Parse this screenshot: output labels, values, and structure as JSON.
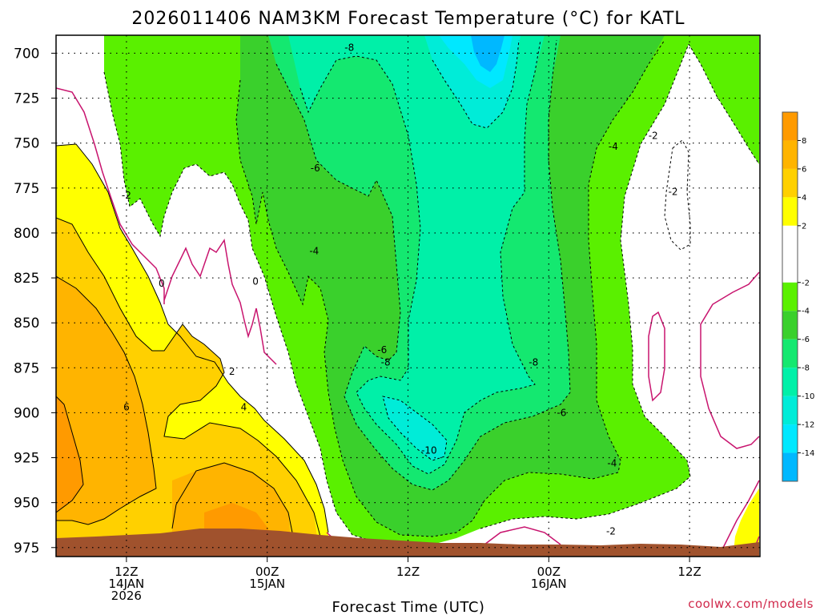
{
  "chart_data": {
    "type": "heatmap",
    "title": "2026011406 NAM3KM Forecast Temperature (°C) for KATL",
    "xlabel": "Forecast Time (UTC)",
    "ylabel": "",
    "credit": "coolwx.com/models",
    "x_ticks": [
      {
        "hours": 6,
        "lines": [
          "12Z",
          "14JAN",
          "2026"
        ]
      },
      {
        "hours": 18,
        "lines": [
          "00Z",
          "15JAN"
        ]
      },
      {
        "hours": 30,
        "lines": [
          "12Z"
        ]
      },
      {
        "hours": 42,
        "lines": [
          "00Z",
          "16JAN"
        ]
      },
      {
        "hours": 54,
        "lines": [
          "12Z"
        ]
      }
    ],
    "xlim_hours": [
      0,
      60
    ],
    "y_axis": {
      "scale": "linear-inverted",
      "ticks": [
        700,
        725,
        750,
        775,
        800,
        825,
        850,
        875,
        900,
        925,
        950,
        975
      ],
      "ylim": [
        980,
        690
      ]
    },
    "grid": true,
    "legend": "colorbar-right",
    "colorbar": {
      "labels": [
        "8",
        "6",
        "4",
        "2",
        "-2",
        "-4",
        "-6",
        "-8",
        "-10",
        "-12",
        "-14"
      ],
      "bands": [
        {
          "from": 8,
          "to": 10,
          "color": "#ff9a00"
        },
        {
          "from": 6,
          "to": 8,
          "color": "#ffb400"
        },
        {
          "from": 4,
          "to": 6,
          "color": "#ffd000"
        },
        {
          "from": 2,
          "to": 4,
          "color": "#ffff00"
        },
        {
          "from": -2,
          "to": 2,
          "color": "#ffffff"
        },
        {
          "from": -4,
          "to": -2,
          "color": "#5af000"
        },
        {
          "from": -6,
          "to": -4,
          "color": "#3ad02c"
        },
        {
          "from": -8,
          "to": -6,
          "color": "#14e870"
        },
        {
          "from": -10,
          "to": -8,
          "color": "#00f0a8"
        },
        {
          "from": -12,
          "to": -10,
          "color": "#00ecd8"
        },
        {
          "from": -14,
          "to": -12,
          "color": "#00e8ff"
        },
        {
          "from": -16,
          "to": -14,
          "color": "#00b8ff"
        }
      ]
    },
    "contour_labels": [
      {
        "text": "-8",
        "hours": 25.0,
        "p": 697
      },
      {
        "text": "-6",
        "hours": 22.1,
        "p": 764
      },
      {
        "text": "-2",
        "hours": 6.0,
        "p": 779
      },
      {
        "text": "-4",
        "hours": 22.0,
        "p": 810
      },
      {
        "text": "0",
        "hours": 9.0,
        "p": 828
      },
      {
        "text": "0",
        "hours": 17.0,
        "p": 827
      },
      {
        "text": "-6",
        "hours": 27.8,
        "p": 865
      },
      {
        "text": "-8",
        "hours": 28.1,
        "p": 872
      },
      {
        "text": "2",
        "hours": 15.0,
        "p": 877
      },
      {
        "text": "-8",
        "hours": 40.7,
        "p": 872
      },
      {
        "text": "6",
        "hours": 6.0,
        "p": 897
      },
      {
        "text": "4",
        "hours": 16.0,
        "p": 897
      },
      {
        "text": "-6",
        "hours": 43.1,
        "p": 900
      },
      {
        "text": "-10",
        "hours": 31.8,
        "p": 921
      },
      {
        "text": "-4",
        "hours": 47.4,
        "p": 928
      },
      {
        "text": "-2",
        "hours": 47.3,
        "p": 966
      },
      {
        "text": "-4",
        "hours": 47.5,
        "p": 752
      },
      {
        "text": "-2",
        "hours": 50.9,
        "p": 746
      },
      {
        "text": "-2",
        "hours": 52.6,
        "p": 777
      }
    ]
  }
}
